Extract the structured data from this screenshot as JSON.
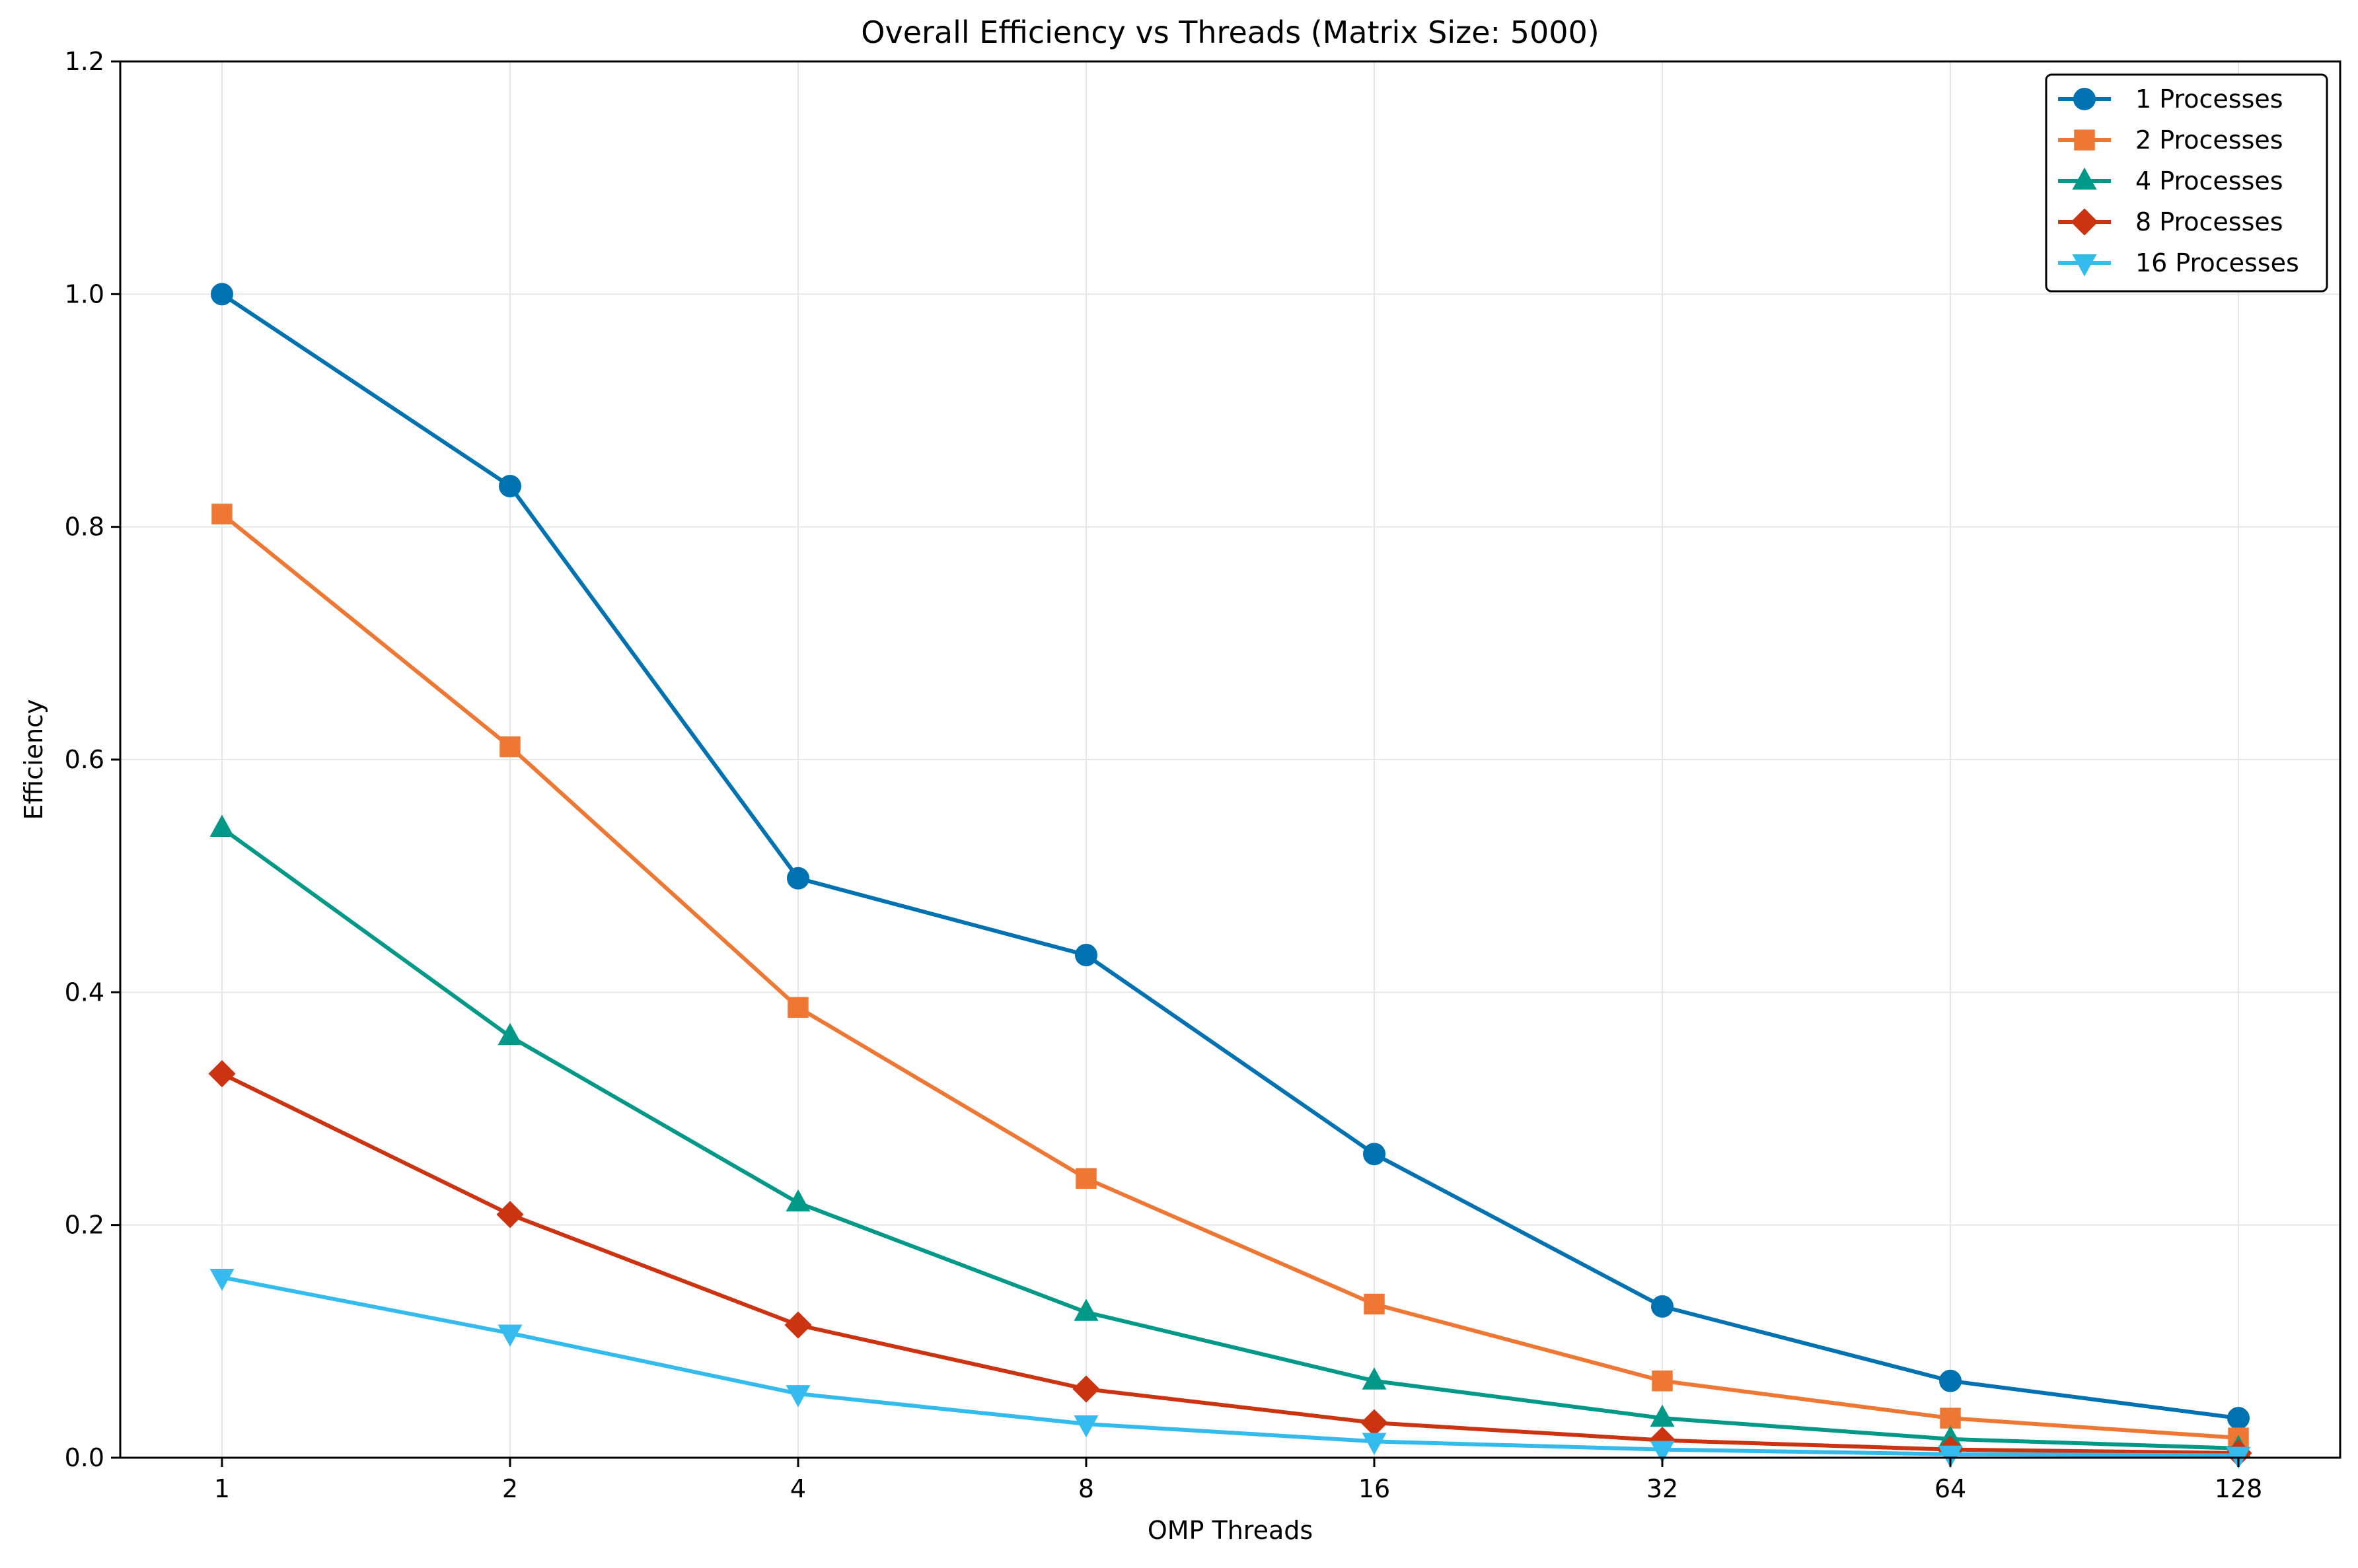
{
  "chart_data": {
    "type": "line",
    "title": "Overall Efficiency vs Threads (Matrix Size: 5000)",
    "xlabel": "OMP Threads",
    "ylabel": "Efficiency",
    "categories": [
      "1",
      "2",
      "4",
      "8",
      "16",
      "32",
      "64",
      "128"
    ],
    "x": [
      1,
      2,
      4,
      8,
      16,
      32,
      64,
      128
    ],
    "x_scale": "log2",
    "ylim": [
      0,
      1.2
    ],
    "yticks": [
      "0.0",
      "0.2",
      "0.4",
      "0.6",
      "0.8",
      "1.0",
      "1.2"
    ],
    "ytick_values": [
      0,
      0.2,
      0.4,
      0.6,
      0.8,
      1.0,
      1.2
    ],
    "grid": true,
    "legend_position": "top-right",
    "series": [
      {
        "name": "1 Processes",
        "color": "#0072b2",
        "marker": "circle",
        "values": [
          1.0,
          0.835,
          0.498,
          0.432,
          0.261,
          0.13,
          0.066,
          0.034
        ]
      },
      {
        "name": "2 Processes",
        "color": "#ee7733",
        "marker": "square",
        "values": [
          0.811,
          0.611,
          0.387,
          0.24,
          0.132,
          0.066,
          0.034,
          0.017
        ]
      },
      {
        "name": "4 Processes",
        "color": "#009988",
        "marker": "triangle-up",
        "values": [
          0.541,
          0.362,
          0.219,
          0.125,
          0.066,
          0.034,
          0.016,
          0.008
        ]
      },
      {
        "name": "8 Processes",
        "color": "#cc3311",
        "marker": "diamond",
        "values": [
          0.33,
          0.209,
          0.114,
          0.059,
          0.03,
          0.015,
          0.007,
          0.004
        ]
      },
      {
        "name": "16 Processes",
        "color": "#33bbee",
        "marker": "triangle-down",
        "values": [
          0.155,
          0.107,
          0.055,
          0.029,
          0.014,
          0.007,
          0.003,
          0.002
        ]
      }
    ]
  }
}
